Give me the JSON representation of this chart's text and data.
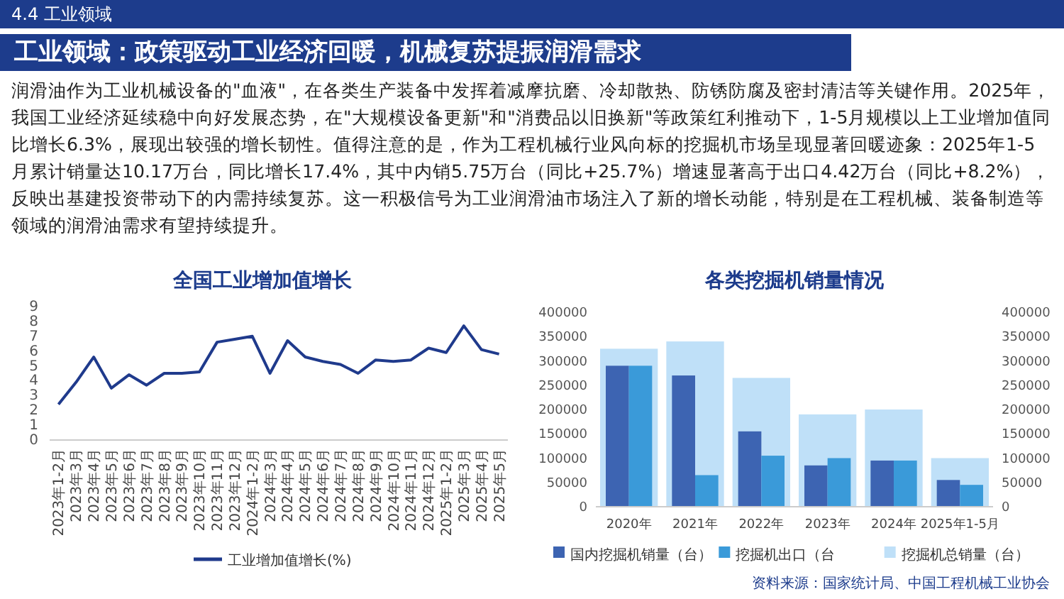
{
  "chart_data": [
    {
      "type": "other",
      "subtitle": "4.4 工业领域",
      "title": "工业领域：政策驱动工业经济回暖，机械复苏提振润滑需求",
      "annotations": [
        "润滑油作为工业机械设备的\"血液\"，在各类生产装备中发挥着减摩抗磨、冷却散热、防锈防腐及密封清洁等关键作用。2025年，我国工业经济延续稳中向好发展态势，在\"大规模设备更新\"和\"消费品以旧换新\"等政策红利推动下，1-5月规模以上工业增加值同比增长6.3%，展现出较强的增长韧性。值得注意的是，作为工程机械行业风向标的挖掘机市场呈现显著回暖迹象：2025年1-5月累计销量达10.17万台，同比增长17.4%，其中内销5.75万台（同比+25.7%）增速显著高于出口4.42万台（同比+8.2%），反映出基建投资带动下的内需持续复苏。这一积极信号为工业润滑油市场注入了新的增长动能，特别是在工程机械、装备制造等领域的润滑油需求有望持续提升。",
        "资料来源：国家统计局、中国工程机械工业协会"
      ]
    },
    {
      "type": "line",
      "title": "全国工业增加值增长",
      "categories": [
        "2023年1-2月",
        "2023年3月",
        "2023年4月",
        "2023年5月",
        "2023年6月",
        "2023年7月",
        "2023年8月",
        "2023年9月",
        "2023年10月",
        "2023年11月",
        "2023年12月",
        "2024年1-2月",
        "2024年3月",
        "2024年4月",
        "2024年5月",
        "2024年6月",
        "2024年7月",
        "2024年8月",
        "2024年9月",
        "2024年10月",
        "2024年11月",
        "2024年12月",
        "2025年1-2月",
        "2025年3月",
        "2025年4月",
        "2025年5月"
      ],
      "series": [
        {
          "name": "工业增加值增长(%)",
          "color": "#1f3a8c",
          "values": [
            2.4,
            3.9,
            5.6,
            3.5,
            4.4,
            3.7,
            4.5,
            4.5,
            4.6,
            6.6,
            6.8,
            7.0,
            4.5,
            6.7,
            5.6,
            5.3,
            5.1,
            4.5,
            5.4,
            5.3,
            5.4,
            6.2,
            5.9,
            7.7,
            6.1,
            5.8
          ]
        }
      ],
      "ylim": [
        0,
        9
      ],
      "yticks": [
        0,
        1,
        2,
        3,
        4,
        5,
        6,
        7,
        8,
        9
      ],
      "legend": "bottom"
    },
    {
      "type": "bar",
      "title": "各类挖掘机销量情况",
      "categories": [
        "2020年",
        "2021年",
        "2022年",
        "2023年",
        "2024年",
        "2025年1-5月"
      ],
      "series": [
        {
          "name": "国内挖掘机销量（台）",
          "color": "#3d64b2",
          "values": [
            290000,
            270000,
            155000,
            85000,
            95000,
            55000
          ]
        },
        {
          "name": "挖掘机出口（台",
          "color": "#3a9ad9",
          "values": [
            290000,
            65000,
            105000,
            100000,
            95000,
            45000
          ]
        },
        {
          "name": "挖掘机总销量（台）",
          "color": "#bfe0f8",
          "axis": "y2",
          "values": [
            325000,
            340000,
            265000,
            190000,
            200000,
            100000
          ]
        }
      ],
      "ylim": [
        0,
        400000
      ],
      "yticks": [
        0,
        50000,
        100000,
        150000,
        200000,
        250000,
        300000,
        350000,
        400000
      ],
      "y2lim": [
        0,
        400000
      ],
      "y2ticks": [
        0,
        50000,
        100000,
        150000,
        200000,
        250000,
        300000,
        350000,
        400000
      ],
      "legend": "bottom"
    }
  ]
}
